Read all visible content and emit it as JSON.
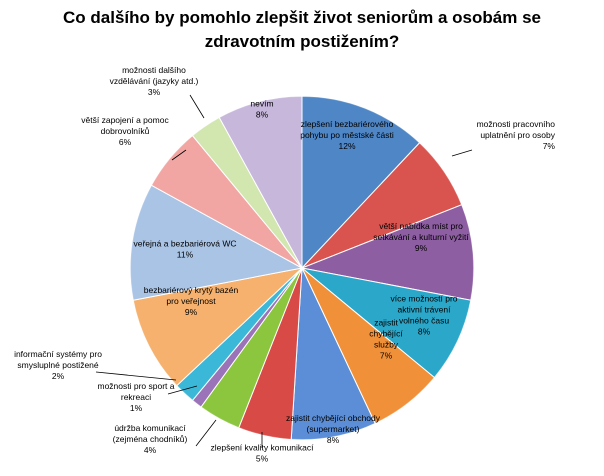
{
  "chart_data": {
    "type": "pie",
    "title_lines": [
      "Co dalšího by pomohlo zlepšit život seniorům a osobám se",
      "zdravotním postižením?"
    ],
    "slices": [
      {
        "label": [
          "zlepšení bezbariérového",
          "pohybu po městské části"
        ],
        "value": 12,
        "value_label": "12%",
        "color": "#4f86c6"
      },
      {
        "label": [
          "možnosti pracovního",
          "uplatnění pro osoby"
        ],
        "value": 7,
        "value_label": "7%",
        "color": "#d9534f"
      },
      {
        "label": [
          "větší nabídka míst pro",
          "setkávání a kulturní vyžití"
        ],
        "value": 9,
        "value_label": "9%",
        "color": "#8e5ea2"
      },
      {
        "label": [
          "více možností pro",
          "aktivní trávení",
          "volného času"
        ],
        "value": 8,
        "value_label": "8%",
        "color": "#2aa7c9"
      },
      {
        "label": [
          "zajistit",
          "chybějící",
          "služby"
        ],
        "value": 7,
        "value_label": "7%",
        "color": "#f0913a"
      },
      {
        "label": [
          "zajistit chybějící obchody",
          "(supermarket)"
        ],
        "value": 8,
        "value_label": "8%",
        "color": "#5b8ed6"
      },
      {
        "label": [
          "zlepšení kvality komunikací"
        ],
        "value": 5,
        "value_label": "5%",
        "color": "#d84a45"
      },
      {
        "label": [
          "údržba komunikací",
          "(zejména chodníků)"
        ],
        "value": 4,
        "value_label": "4%",
        "color": "#8cc63e"
      },
      {
        "label": [
          "možnosti pro sport a",
          "rekreaci"
        ],
        "value": 1,
        "value_label": "1%",
        "color": "#9a73b8"
      },
      {
        "label": [
          "informační systémy pro",
          "smysluplné postižené"
        ],
        "value": 2,
        "value_label": "2%",
        "color": "#3bb8d8"
      },
      {
        "label": [
          "bezbariérový krytý bazén",
          "pro veřejnost"
        ],
        "value": 9,
        "value_label": "9%",
        "color": "#f5b16d"
      },
      {
        "label": [
          "veřejná a bezbariérová WC"
        ],
        "value": 11,
        "value_label": "11%",
        "color": "#aac4e6"
      },
      {
        "label": [
          "větší zapojení a pomoc",
          "dobrovolníků"
        ],
        "value": 6,
        "value_label": "6%",
        "color": "#f2a6a3"
      },
      {
        "label": [
          "možnosti dalšího",
          "vzdělávání (jazyky atd.)"
        ],
        "value": 3,
        "value_label": "3%",
        "color": "#d2e6b0"
      },
      {
        "label": [
          "nevím"
        ],
        "value": 8,
        "value_label": "8%",
        "color": "#c7b7db"
      }
    ]
  }
}
